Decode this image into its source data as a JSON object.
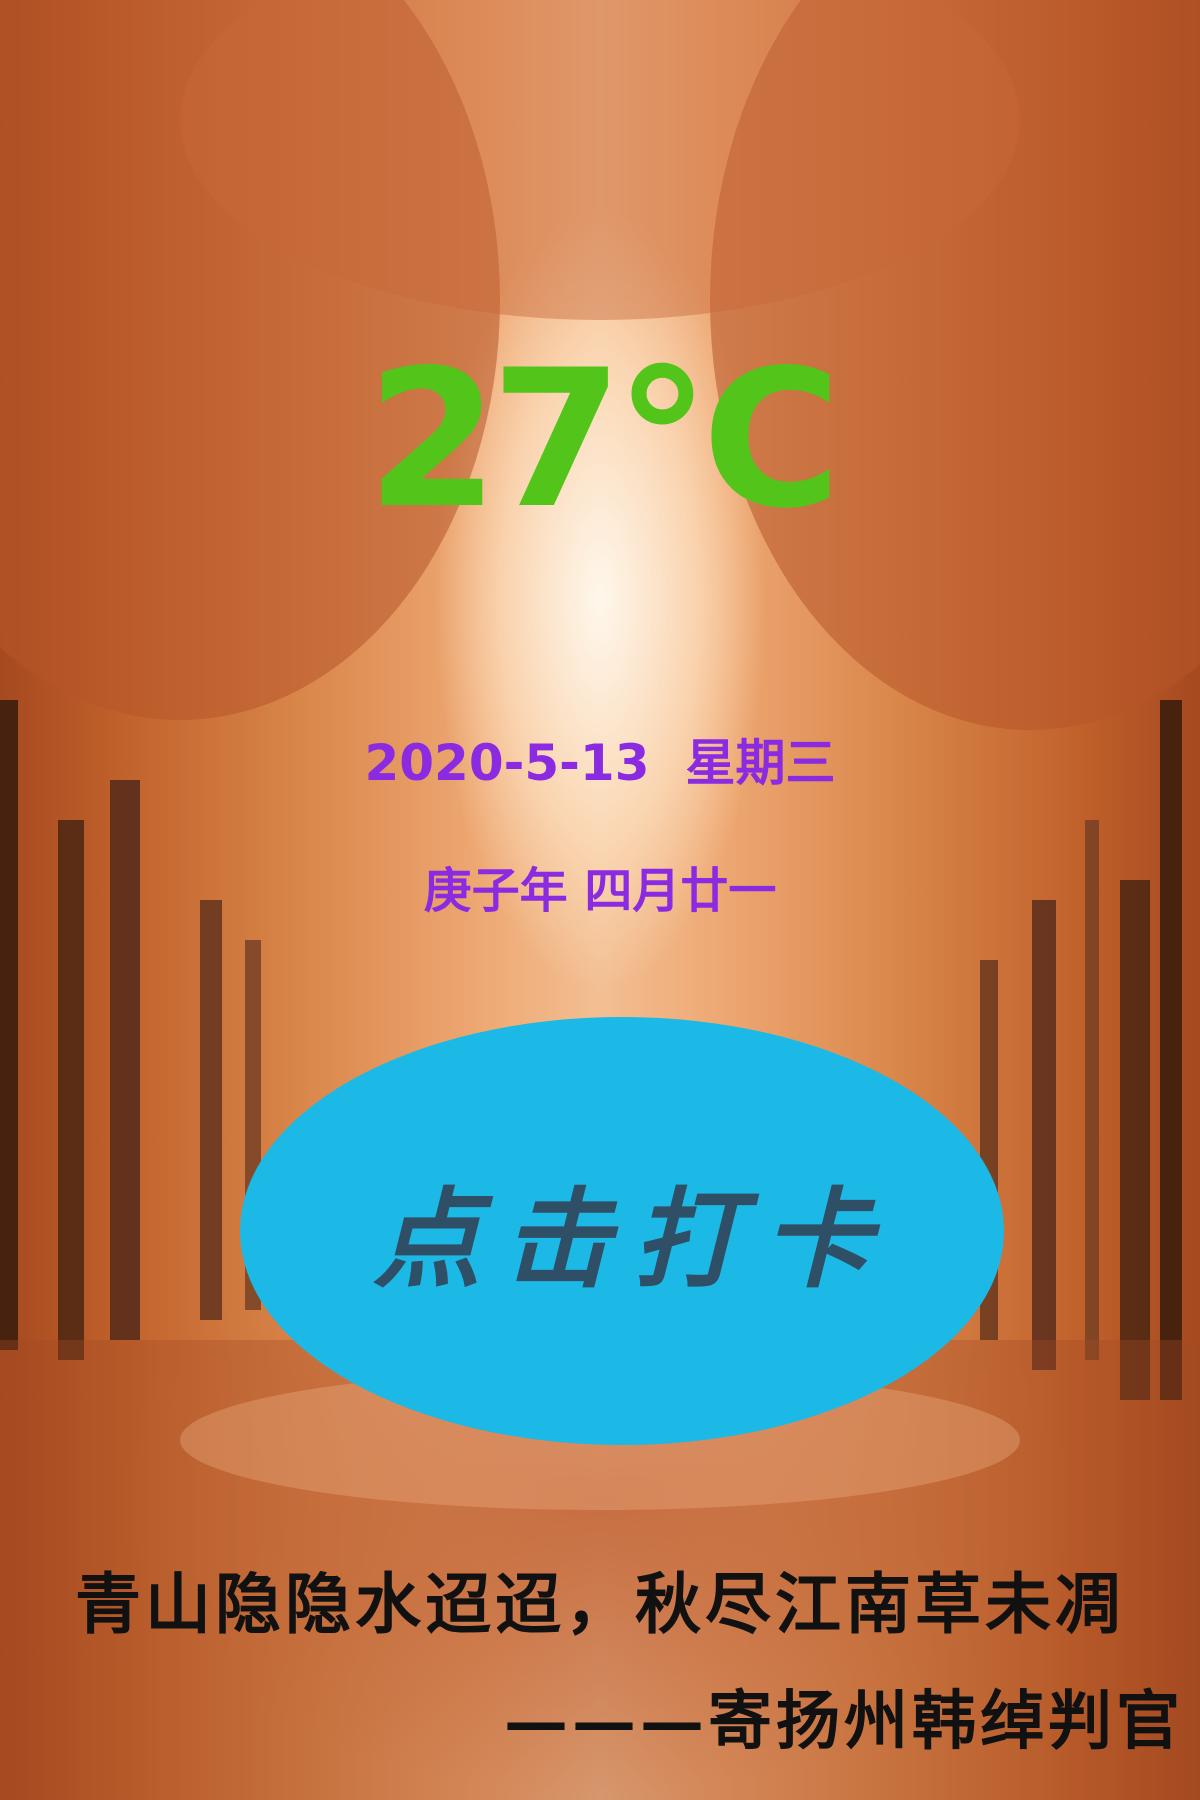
{
  "background": {
    "description_icon": "autumn-forest-background",
    "colors": {
      "warm_orange": "#d9864a",
      "deep_rust": "#a5491f",
      "light_center": "#fff6ea"
    }
  },
  "weather": {
    "temperature": "27°C",
    "temperature_color": "#52c41a"
  },
  "date": {
    "gregorian": "2020-5-13",
    "weekday": "星期三",
    "lunar": "庚子年 四月廿一",
    "text_color": "#8a2be2"
  },
  "checkin_button": {
    "label": "点击打卡",
    "bg_color": "#1cb8e6",
    "text_color": "#2f4f66"
  },
  "poem": {
    "line": "青山隐隐水迢迢，秋尽江南草未凋",
    "attribution": "———寄扬州韩绰判官"
  }
}
